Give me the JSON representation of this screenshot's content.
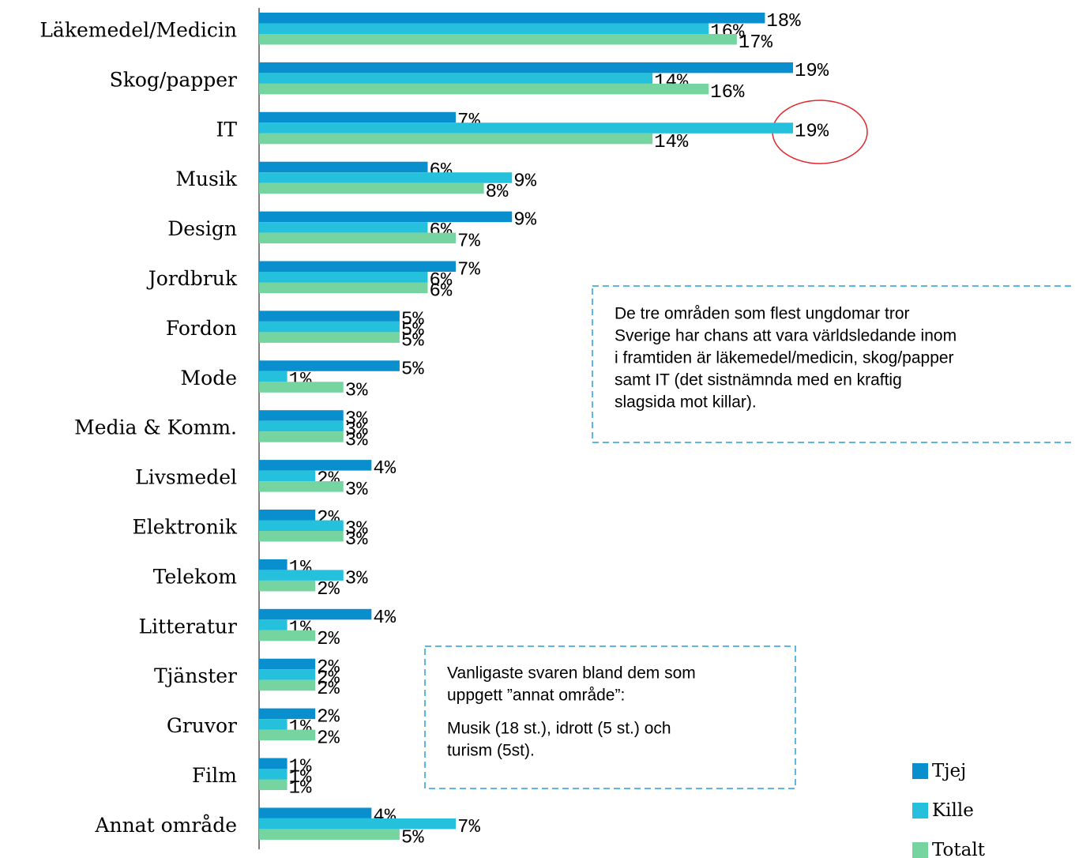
{
  "chart_data": {
    "type": "hbar",
    "categories": [
      "Läkemedel/Medicin",
      "Skog/papper",
      "IT",
      "Musik",
      "Design",
      "Jordbruk",
      "Fordon",
      "Mode",
      "Media & Komm.",
      "Livsmedel",
      "Elektronik",
      "Telekom",
      "Litteratur",
      "Tjänster",
      "Gruvor",
      "Film",
      "Annat område"
    ],
    "series": [
      {
        "name": "Tjej",
        "color": "#0a8fce",
        "values": [
          18,
          19,
          7,
          6,
          9,
          7,
          5,
          5,
          3,
          4,
          2,
          1,
          4,
          2,
          2,
          1,
          4
        ],
        "value_labels": [
          "18%",
          "19%",
          "7%",
          "6%",
          "9%",
          "7%",
          "5%",
          "5%",
          "3%",
          "4%",
          "2%",
          "1%",
          "4%",
          "2%",
          "2%",
          "1%",
          "4%"
        ]
      },
      {
        "name": "Kille",
        "color": "#25c0dc",
        "values": [
          16,
          14,
          19,
          9,
          6,
          6,
          5,
          1,
          3,
          2,
          3,
          3,
          1,
          2,
          1,
          1,
          7
        ],
        "value_labels": [
          "16%",
          "14%",
          "19%",
          "9%",
          "6%",
          "6%",
          "5%",
          "1%",
          "3%",
          "2%",
          "3%",
          "3%",
          "1%",
          "2%",
          "1%",
          "1%",
          "7%"
        ]
      },
      {
        "name": "Totalt",
        "color": "#76d4a0",
        "values": [
          17,
          16,
          14,
          8,
          7,
          6,
          5,
          3,
          3,
          3,
          3,
          2,
          2,
          2,
          2,
          1,
          5
        ],
        "value_labels": [
          "17%",
          "16%",
          "14%",
          "8%",
          "7%",
          "6%",
          "5%",
          "3%",
          "3%",
          "3%",
          "3%",
          "2%",
          "2%",
          "2%",
          "2%",
          "1%",
          "5%"
        ]
      }
    ],
    "annotations": [
      {
        "lines": [
          "De tre områden som flest ungdomar tror",
          "Sverige har chans att vara världsledande inom",
          "i framtiden är läkemedel/medicin, skog/papper",
          "samt IT (det sistnämnda med en kraftig",
          "slagsida mot killar)."
        ]
      },
      {
        "lines": [
          "Vanligaste svaren bland dem som",
          "uppgett ”annat område”:",
          "Musik (18 st.), idrott (5 st.) och",
          "turism (5st)."
        ]
      }
    ]
  }
}
